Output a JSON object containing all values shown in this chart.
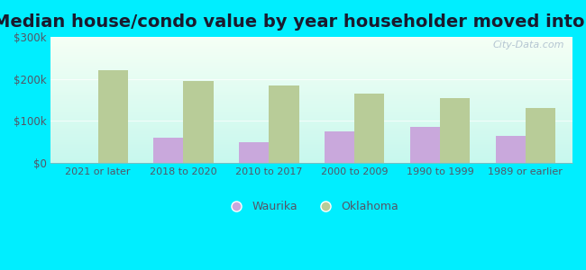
{
  "title": "Median house/condo value by year householder moved into unit",
  "categories": [
    "2021 or later",
    "2018 to 2020",
    "2010 to 2017",
    "2000 to 2009",
    "1990 to 1999",
    "1989 or earlier"
  ],
  "waurika": [
    0,
    60000,
    50000,
    75000,
    85000,
    65000
  ],
  "oklahoma": [
    220000,
    195000,
    185000,
    165000,
    155000,
    130000
  ],
  "waurika_color": "#c9a8dc",
  "oklahoma_color": "#b8cc98",
  "background_outer": "#00eeff",
  "ylim": [
    0,
    300000
  ],
  "yticks": [
    0,
    100000,
    200000,
    300000
  ],
  "ytick_labels": [
    "$0",
    "$100k",
    "$200k",
    "$300k"
  ],
  "bar_width": 0.35,
  "title_fontsize": 14,
  "watermark": "City-Data.com"
}
